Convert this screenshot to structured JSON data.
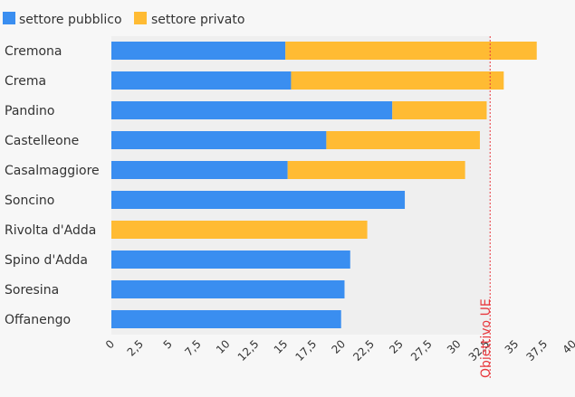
{
  "chart_data": {
    "type": "bar",
    "orientation": "horizontal",
    "stacked": true,
    "categories": [
      "Cremona",
      "Crema",
      "Pandino",
      "Castelleone",
      "Casalmaggiore",
      "Soncino",
      "Rivolta d'Adda",
      "Spino d'Adda",
      "Soresina",
      "Offanengo"
    ],
    "series": [
      {
        "name": "settore pubblico",
        "color": "#3a8ef0",
        "values": [
          15.3,
          15.8,
          24.7,
          18.9,
          15.5,
          25.8,
          0,
          21.0,
          20.5,
          20.2
        ]
      },
      {
        "name": "settore privato",
        "color": "#ffbb33",
        "values": [
          22.1,
          18.7,
          8.3,
          13.5,
          15.6,
          0,
          22.5,
          0,
          0,
          0
        ]
      }
    ],
    "xlim": [
      0,
      40
    ],
    "ticks": [
      "0",
      "2,5",
      "5",
      "7,5",
      "10",
      "12,5",
      "15",
      "17,5",
      "20",
      "22,5",
      "25",
      "27,5",
      "30",
      "32,5",
      "35",
      "37,5",
      "40"
    ],
    "reference_line": {
      "value": 33.3,
      "label": "Obiettivo UE",
      "color": "#e8383d"
    },
    "legend_position": "top-left",
    "grid": false
  }
}
